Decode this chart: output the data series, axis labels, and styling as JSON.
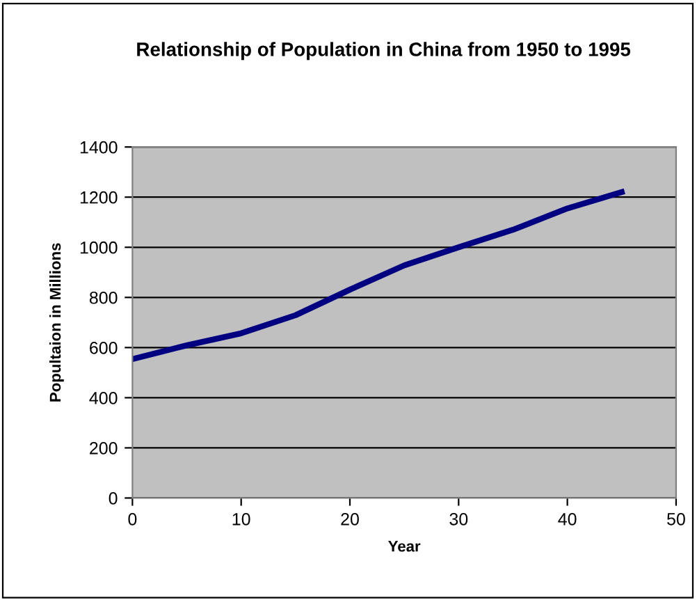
{
  "chart_data": {
    "type": "line",
    "title": "Relationship of Population in China from 1950 to 1995",
    "xlabel": "Year",
    "ylabel": "Popultaion in Millions",
    "x": [
      0,
      5,
      10,
      15,
      20,
      25,
      30,
      35,
      40,
      45
    ],
    "series": [
      {
        "color": "#000080",
        "values": [
          554,
          609,
          657,
          729,
          831,
          928,
          1000,
          1070,
          1155,
          1220
        ]
      }
    ],
    "xlim": [
      0,
      50
    ],
    "xticks": [
      0,
      10,
      20,
      30,
      40,
      50
    ],
    "ylim": [
      0,
      1400
    ],
    "yticks": [
      0,
      200,
      400,
      600,
      800,
      1000,
      1200,
      1400
    ],
    "grid": "y",
    "legend": false,
    "marker": "none",
    "line_style": "solid"
  }
}
